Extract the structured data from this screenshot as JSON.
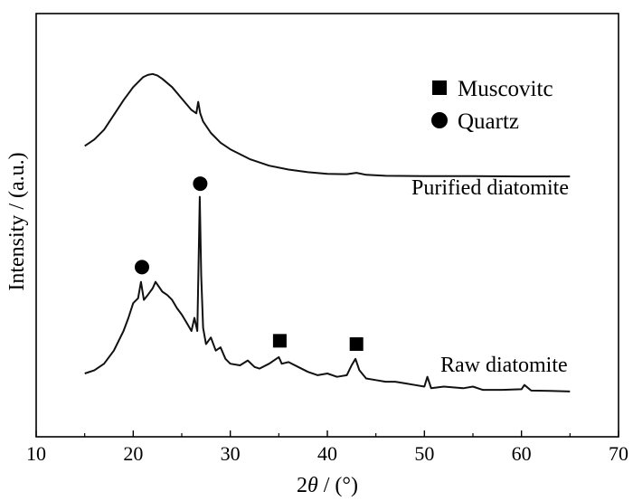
{
  "chart_data": {
    "type": "line",
    "xlabel_prefix": "2",
    "xlabel_symbol": "θ",
    "xlabel_suffix": " / (°)",
    "ylabel": "Intensity / (a.u.)",
    "xlim": [
      10,
      70
    ],
    "xticks": [
      "10",
      "20",
      "30",
      "40",
      "50",
      "60",
      "70"
    ],
    "ylim": [
      0,
      100
    ],
    "legend": {
      "position": "top-right",
      "items": [
        {
          "marker": "square",
          "label": "Muscovitc"
        },
        {
          "marker": "circle",
          "label": "Quartz"
        }
      ]
    },
    "series": [
      {
        "name": "Purified diatomite",
        "x": [
          15,
          16,
          17,
          18,
          19,
          20,
          21,
          21.5,
          22,
          22.5,
          23,
          24,
          25,
          26,
          26.5,
          26.7,
          26.9,
          27.2,
          28,
          29,
          30,
          32,
          34,
          36,
          38,
          40,
          42,
          43,
          44,
          46,
          50,
          55,
          60,
          65
        ],
        "y": [
          77.5,
          79.5,
          82.5,
          87,
          91.5,
          95.5,
          98.5,
          99.2,
          99.5,
          99,
          98,
          95.5,
          92,
          88.5,
          87.5,
          91,
          87.5,
          85,
          81.5,
          78.5,
          76.5,
          73.5,
          71.5,
          70.3,
          69.5,
          69,
          68.9,
          69.3,
          68.7,
          68.4,
          68.3,
          68.3,
          68.2,
          68.2
        ]
      },
      {
        "name": "Raw diatomite",
        "x": [
          15,
          16,
          17,
          18,
          19,
          19.5,
          20,
          20.5,
          20.8,
          21.1,
          21.5,
          22,
          22.3,
          23,
          23.5,
          24,
          24.5,
          25,
          25.5,
          26,
          26.3,
          26.6,
          26.75,
          26.85,
          27,
          27.2,
          27.5,
          28,
          28.5,
          29,
          29.5,
          30,
          31,
          31.8,
          32.5,
          33,
          34,
          35,
          35.3,
          36,
          37,
          38,
          39,
          40,
          41,
          42,
          42.5,
          42.9,
          43.3,
          44,
          45,
          46,
          47,
          48,
          49,
          50,
          50.3,
          50.7,
          52,
          54,
          55,
          56,
          58,
          60,
          60.3,
          61,
          63,
          65
        ],
        "y": [
          8,
          9,
          11,
          15,
          21,
          25,
          29.5,
          31,
          36,
          30.5,
          32,
          34,
          36,
          33,
          32,
          30.5,
          28,
          26,
          23.5,
          21,
          25,
          21,
          45,
          62,
          38,
          22,
          17,
          19,
          15,
          16,
          12.5,
          11,
          10.5,
          12,
          10,
          9.5,
          11,
          13,
          11,
          11.5,
          10,
          8.5,
          7.5,
          8,
          7,
          7.5,
          10.5,
          12.5,
          9,
          6.5,
          6,
          5.5,
          5.5,
          5,
          4.5,
          4,
          7,
          3.5,
          4,
          3.5,
          4,
          3,
          3,
          3.2,
          4.5,
          2.8,
          2.7,
          2.5
        ]
      }
    ],
    "markers": [
      {
        "type": "circle",
        "x": 20.9,
        "y": 40.5
      },
      {
        "type": "circle",
        "x": 26.9,
        "y": 66
      },
      {
        "type": "square",
        "x": 35.1,
        "y": 18
      },
      {
        "type": "square",
        "x": 43.0,
        "y": 17
      }
    ]
  }
}
